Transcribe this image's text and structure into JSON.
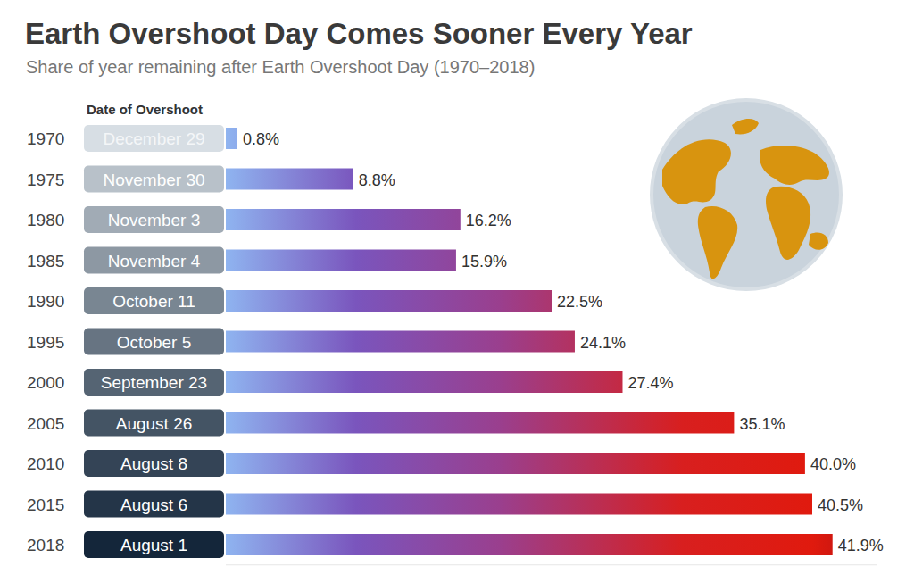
{
  "chart_data": {
    "type": "bar",
    "orientation": "horizontal",
    "title": "Earth Overshoot Day Comes Sooner Every Year",
    "subtitle": "Share of year remaining after Earth Overshoot Day (1970–2018)",
    "date_header": "Date of Overshoot",
    "categories": [
      "1970",
      "1975",
      "1980",
      "1985",
      "1990",
      "1995",
      "2000",
      "2005",
      "2010",
      "2015",
      "2018"
    ],
    "dates": [
      "December 29",
      "November 30",
      "November 3",
      "November 4",
      "October 11",
      "October 5",
      "September 23",
      "August 26",
      "August 8",
      "August 6",
      "August 1"
    ],
    "values": [
      0.8,
      8.8,
      16.2,
      15.9,
      22.5,
      24.1,
      27.4,
      35.1,
      40.0,
      40.5,
      41.9
    ],
    "value_labels": [
      "0.8%",
      "8.8%",
      "16.2%",
      "15.9%",
      "22.5%",
      "24.1%",
      "27.4%",
      "35.1%",
      "40.0%",
      "40.5%",
      "41.9%"
    ],
    "xlim": [
      0,
      45
    ],
    "grid": false,
    "data_labels": true,
    "tick_labels": "y"
  }
}
